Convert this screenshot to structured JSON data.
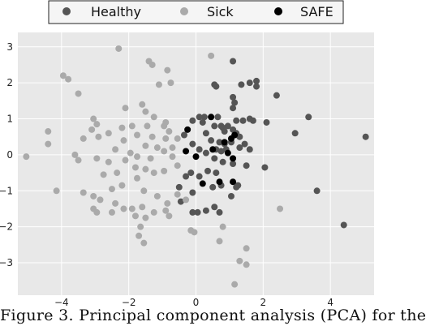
{
  "chart_data": {
    "type": "scatter",
    "title": "",
    "xlabel": "",
    "ylabel": "",
    "xlim": [
      -5.3,
      5.3
    ],
    "ylim": [
      -3.9,
      3.4
    ],
    "xticks": [
      -4,
      -2,
      0,
      2,
      4
    ],
    "yticks": [
      -3,
      -2,
      -1,
      0,
      1,
      2,
      3
    ],
    "grid": true,
    "legend_position": "top-center",
    "series": [
      {
        "name": "Healthy",
        "color": "#555555",
        "points": [
          [
            1.1,
            2.6
          ],
          [
            1.35,
            1.95
          ],
          [
            1.6,
            2.0
          ],
          [
            1.8,
            2.05
          ],
          [
            1.8,
            1.9
          ],
          [
            1.1,
            1.6
          ],
          [
            2.4,
            1.65
          ],
          [
            1.15,
            1.45
          ],
          [
            0.55,
            1.95
          ],
          [
            0.6,
            1.9
          ],
          [
            1.1,
            1.3
          ],
          [
            0.65,
            1.05
          ],
          [
            0.55,
            0.8
          ],
          [
            0.75,
            0.8
          ],
          [
            0.8,
            0.75
          ],
          [
            0.95,
            0.8
          ],
          [
            0.85,
            0.65
          ],
          [
            1.2,
            0.95
          ],
          [
            1.4,
            0.95
          ],
          [
            1.6,
            1.0
          ],
          [
            1.7,
            0.95
          ],
          [
            2.1,
            0.9
          ],
          [
            1.1,
            0.7
          ],
          [
            1.2,
            0.6
          ],
          [
            1.3,
            0.5
          ],
          [
            0.7,
            0.35
          ],
          [
            0.85,
            0.3
          ],
          [
            1.05,
            0.35
          ],
          [
            0.6,
            0.15
          ],
          [
            0.75,
            0.1
          ],
          [
            0.9,
            0.15
          ],
          [
            1.3,
            0.2
          ],
          [
            1.45,
            0.3
          ],
          [
            1.6,
            0.15
          ],
          [
            0.45,
            0.4
          ],
          [
            0.3,
            0.6
          ],
          [
            0.2,
            0.9
          ],
          [
            0.25,
            1.05
          ],
          [
            0.1,
            1.05
          ],
          [
            -0.1,
            0.95
          ],
          [
            -0.35,
            0.55
          ],
          [
            -0.1,
            0.3
          ],
          [
            0.1,
            0.15
          ],
          [
            0.3,
            0.05
          ],
          [
            0.55,
            -0.1
          ],
          [
            0.8,
            -0.2
          ],
          [
            1.1,
            -0.25
          ],
          [
            1.5,
            -0.3
          ],
          [
            2.05,
            -0.35
          ],
          [
            0.35,
            -0.45
          ],
          [
            0.6,
            -0.5
          ],
          [
            0.1,
            -0.6
          ],
          [
            -0.15,
            -0.5
          ],
          [
            -0.3,
            -0.6
          ],
          [
            0.5,
            -0.9
          ],
          [
            0.75,
            -0.85
          ],
          [
            1.2,
            -0.9
          ],
          [
            -0.5,
            -0.9
          ],
          [
            -0.45,
            -1.3
          ],
          [
            -0.1,
            -1.05
          ],
          [
            0.05,
            -1.6
          ],
          [
            -0.1,
            -1.6
          ],
          [
            0.3,
            -1.55
          ],
          [
            0.55,
            -1.45
          ],
          [
            0.7,
            -1.6
          ],
          [
            1.05,
            -1.15
          ],
          [
            1.25,
            -0.85
          ],
          [
            2.95,
            0.6
          ],
          [
            3.35,
            1.05
          ],
          [
            3.6,
            -1.0
          ],
          [
            4.4,
            -1.95
          ],
          [
            5.05,
            0.5
          ]
        ]
      },
      {
        "name": "Sick",
        "color": "#aaaaaa",
        "points": [
          [
            -2.3,
            2.95
          ],
          [
            -1.4,
            2.6
          ],
          [
            -1.3,
            2.5
          ],
          [
            -0.85,
            2.35
          ],
          [
            0.45,
            2.75
          ],
          [
            -3.95,
            2.2
          ],
          [
            -3.8,
            2.1
          ],
          [
            -3.5,
            1.7
          ],
          [
            -1.1,
            1.95
          ],
          [
            -0.75,
            2.0
          ],
          [
            -1.6,
            1.4
          ],
          [
            -1.5,
            1.2
          ],
          [
            -2.1,
            1.3
          ],
          [
            -1.25,
            1.05
          ],
          [
            -0.9,
            0.9
          ],
          [
            -3.05,
            1.0
          ],
          [
            -2.95,
            0.85
          ],
          [
            -2.2,
            0.75
          ],
          [
            -1.9,
            0.8
          ],
          [
            -1.45,
            0.8
          ],
          [
            -0.95,
            0.8
          ],
          [
            -0.8,
            0.65
          ],
          [
            -3.1,
            0.7
          ],
          [
            -2.9,
            0.5
          ],
          [
            -2.6,
            0.6
          ],
          [
            -1.75,
            0.55
          ],
          [
            -1.3,
            0.5
          ],
          [
            -0.9,
            0.45
          ],
          [
            -4.4,
            0.65
          ],
          [
            -4.4,
            0.3
          ],
          [
            -3.35,
            0.45
          ],
          [
            -2.15,
            0.4
          ],
          [
            -1.5,
            0.25
          ],
          [
            -1.15,
            0.2
          ],
          [
            -0.7,
            0.2
          ],
          [
            -0.55,
            0.45
          ],
          [
            -5.05,
            -0.05
          ],
          [
            -3.6,
            0.0
          ],
          [
            -3.5,
            -0.15
          ],
          [
            -2.4,
            0.15
          ],
          [
            -1.95,
            0.05
          ],
          [
            -1.75,
            -0.05
          ],
          [
            -1.35,
            -0.1
          ],
          [
            -0.95,
            0.1
          ],
          [
            -0.7,
            -0.05
          ],
          [
            -2.95,
            -0.1
          ],
          [
            -2.6,
            -0.2
          ],
          [
            -2.1,
            -0.15
          ],
          [
            -1.8,
            -0.35
          ],
          [
            -1.5,
            -0.4
          ],
          [
            -1.25,
            -0.5
          ],
          [
            -0.95,
            -0.45
          ],
          [
            -0.55,
            -0.3
          ],
          [
            -2.75,
            -0.55
          ],
          [
            -2.35,
            -0.5
          ],
          [
            -1.75,
            -0.65
          ],
          [
            -4.15,
            -1.0
          ],
          [
            -3.05,
            -1.15
          ],
          [
            -2.5,
            -0.95
          ],
          [
            -2.2,
            -0.85
          ],
          [
            -1.55,
            -1.0
          ],
          [
            -1.15,
            -1.15
          ],
          [
            -0.85,
            -1.35
          ],
          [
            -0.55,
            -1.1
          ],
          [
            -3.35,
            -1.05
          ],
          [
            -2.85,
            -1.25
          ],
          [
            -2.4,
            -1.35
          ],
          [
            -1.9,
            -1.5
          ],
          [
            -1.6,
            -1.45
          ],
          [
            -1.25,
            -1.6
          ],
          [
            -0.9,
            -1.55
          ],
          [
            -0.3,
            -1.25
          ],
          [
            -3.05,
            -1.5
          ],
          [
            -2.95,
            -1.6
          ],
          [
            -2.5,
            -1.6
          ],
          [
            -2.15,
            -1.5
          ],
          [
            -1.8,
            -1.7
          ],
          [
            -1.5,
            -1.75
          ],
          [
            -0.8,
            -1.7
          ],
          [
            -1.65,
            -2.0
          ],
          [
            -1.7,
            -2.25
          ],
          [
            -1.55,
            -2.45
          ],
          [
            -0.15,
            -2.1
          ],
          [
            -0.05,
            -2.15
          ],
          [
            0.7,
            -2.4
          ],
          [
            2.5,
            -1.5
          ],
          [
            1.5,
            -2.6
          ],
          [
            1.3,
            -2.95
          ],
          [
            1.5,
            -3.05
          ],
          [
            1.15,
            -3.6
          ],
          [
            0.8,
            -2.0
          ]
        ]
      },
      {
        "name": "SAFE",
        "color": "#000000",
        "points": [
          [
            -0.25,
            0.7
          ],
          [
            -0.3,
            0.1
          ],
          [
            0.45,
            1.05
          ],
          [
            0.85,
            0.35
          ],
          [
            1.15,
            0.55
          ],
          [
            1.05,
            0.45
          ],
          [
            0.5,
            0.15
          ],
          [
            0.95,
            0.05
          ],
          [
            0.0,
            -0.05
          ],
          [
            1.1,
            -0.1
          ],
          [
            0.7,
            -0.75
          ],
          [
            1.1,
            -0.75
          ],
          [
            0.2,
            -0.8
          ]
        ]
      }
    ],
    "caption": "Figure 3. Principal component analysis (PCA) for the"
  },
  "legend": {
    "items": [
      {
        "label": "Healthy",
        "color": "#555555"
      },
      {
        "label": "Sick",
        "color": "#aaaaaa"
      },
      {
        "label": "SAFE",
        "color": "#000000"
      }
    ]
  }
}
